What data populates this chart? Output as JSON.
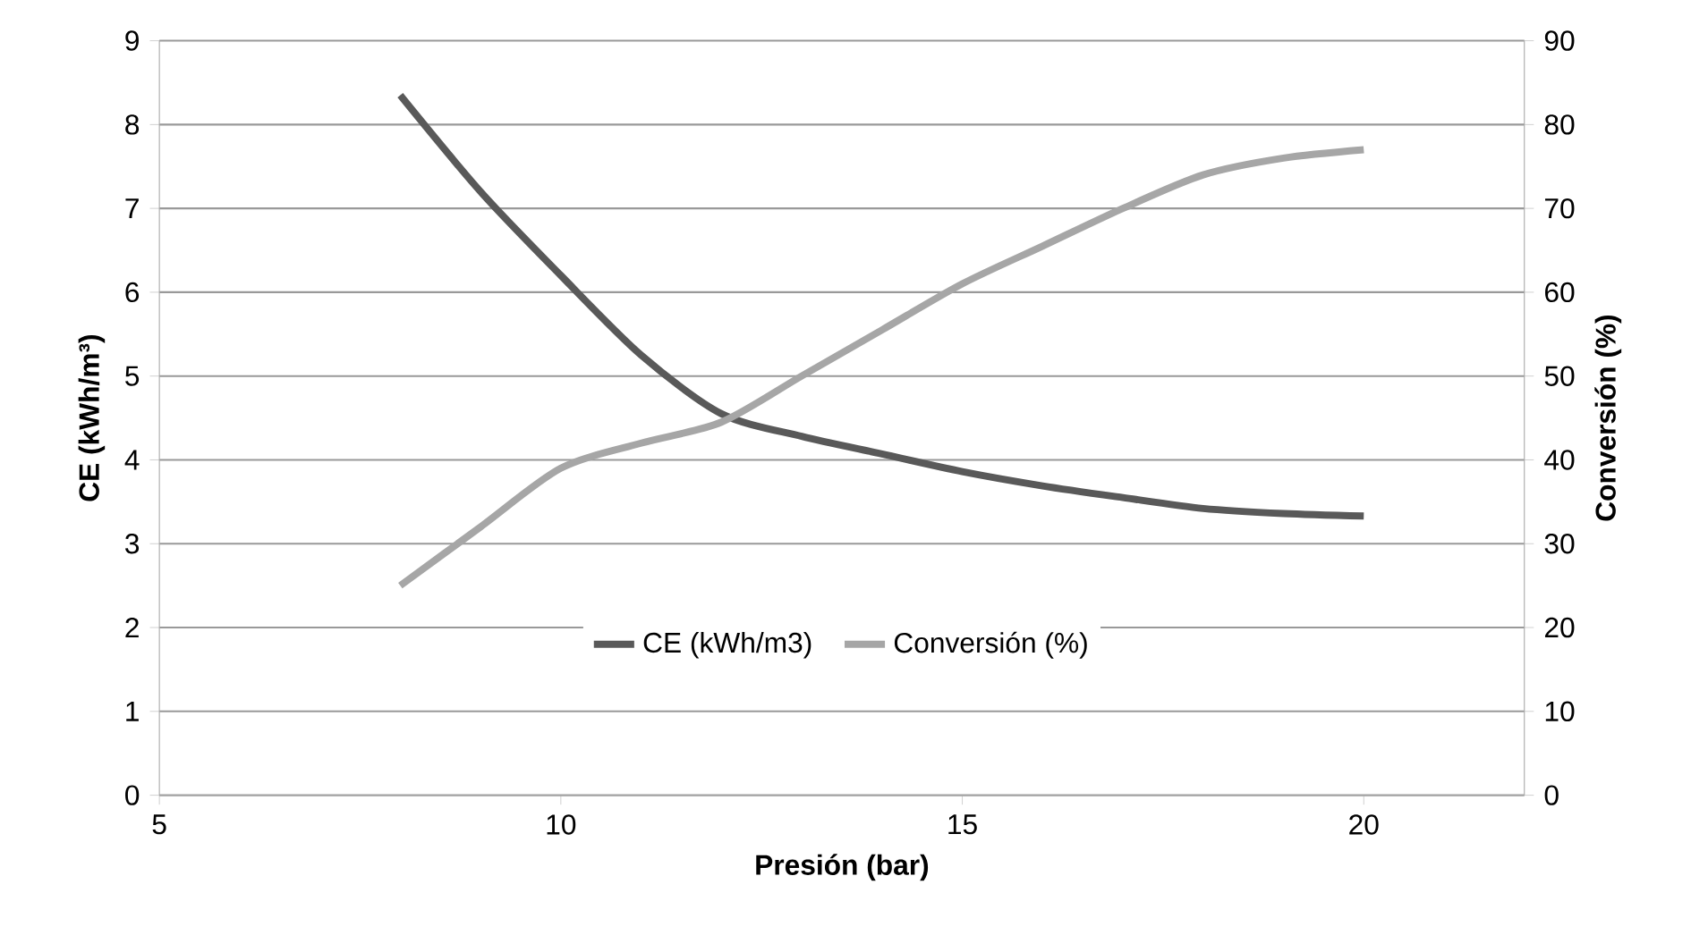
{
  "chart_data": {
    "type": "line",
    "xlabel": "Presión (bar)",
    "ylabel": "CE (kWh/m³)",
    "y2label": "Conversión (%)",
    "xlim": [
      5,
      22
    ],
    "xticks": [
      5,
      10,
      15,
      20
    ],
    "ylim": [
      0,
      9
    ],
    "yticks": [
      0,
      1,
      2,
      3,
      4,
      5,
      6,
      7,
      8,
      9
    ],
    "y2lim": [
      0,
      90
    ],
    "y2ticks": [
      0,
      10,
      20,
      30,
      40,
      50,
      60,
      70,
      80,
      90
    ],
    "grid": "y",
    "legend": "bottom",
    "marker": "none",
    "line_style": "solid",
    "series": [
      {
        "name": "CE (kWh/m3)",
        "color": "#595959",
        "axis": "y",
        "x": [
          8,
          9,
          10,
          11,
          12,
          13,
          14,
          15,
          16,
          17,
          18,
          19,
          20
        ],
        "values": [
          8.35,
          7.2,
          6.2,
          5.25,
          4.55,
          4.28,
          4.07,
          3.86,
          3.69,
          3.55,
          3.42,
          3.36,
          3.33
        ]
      },
      {
        "name": "Conversión (%)",
        "color": "#a6a6a6",
        "axis": "y2",
        "x": [
          8,
          9,
          10,
          11,
          12,
          13,
          14,
          15,
          16,
          17,
          18,
          19,
          20
        ],
        "values": [
          25,
          32,
          39,
          42,
          44.5,
          50,
          55.5,
          61,
          65.5,
          70,
          74,
          76,
          77
        ]
      }
    ]
  }
}
